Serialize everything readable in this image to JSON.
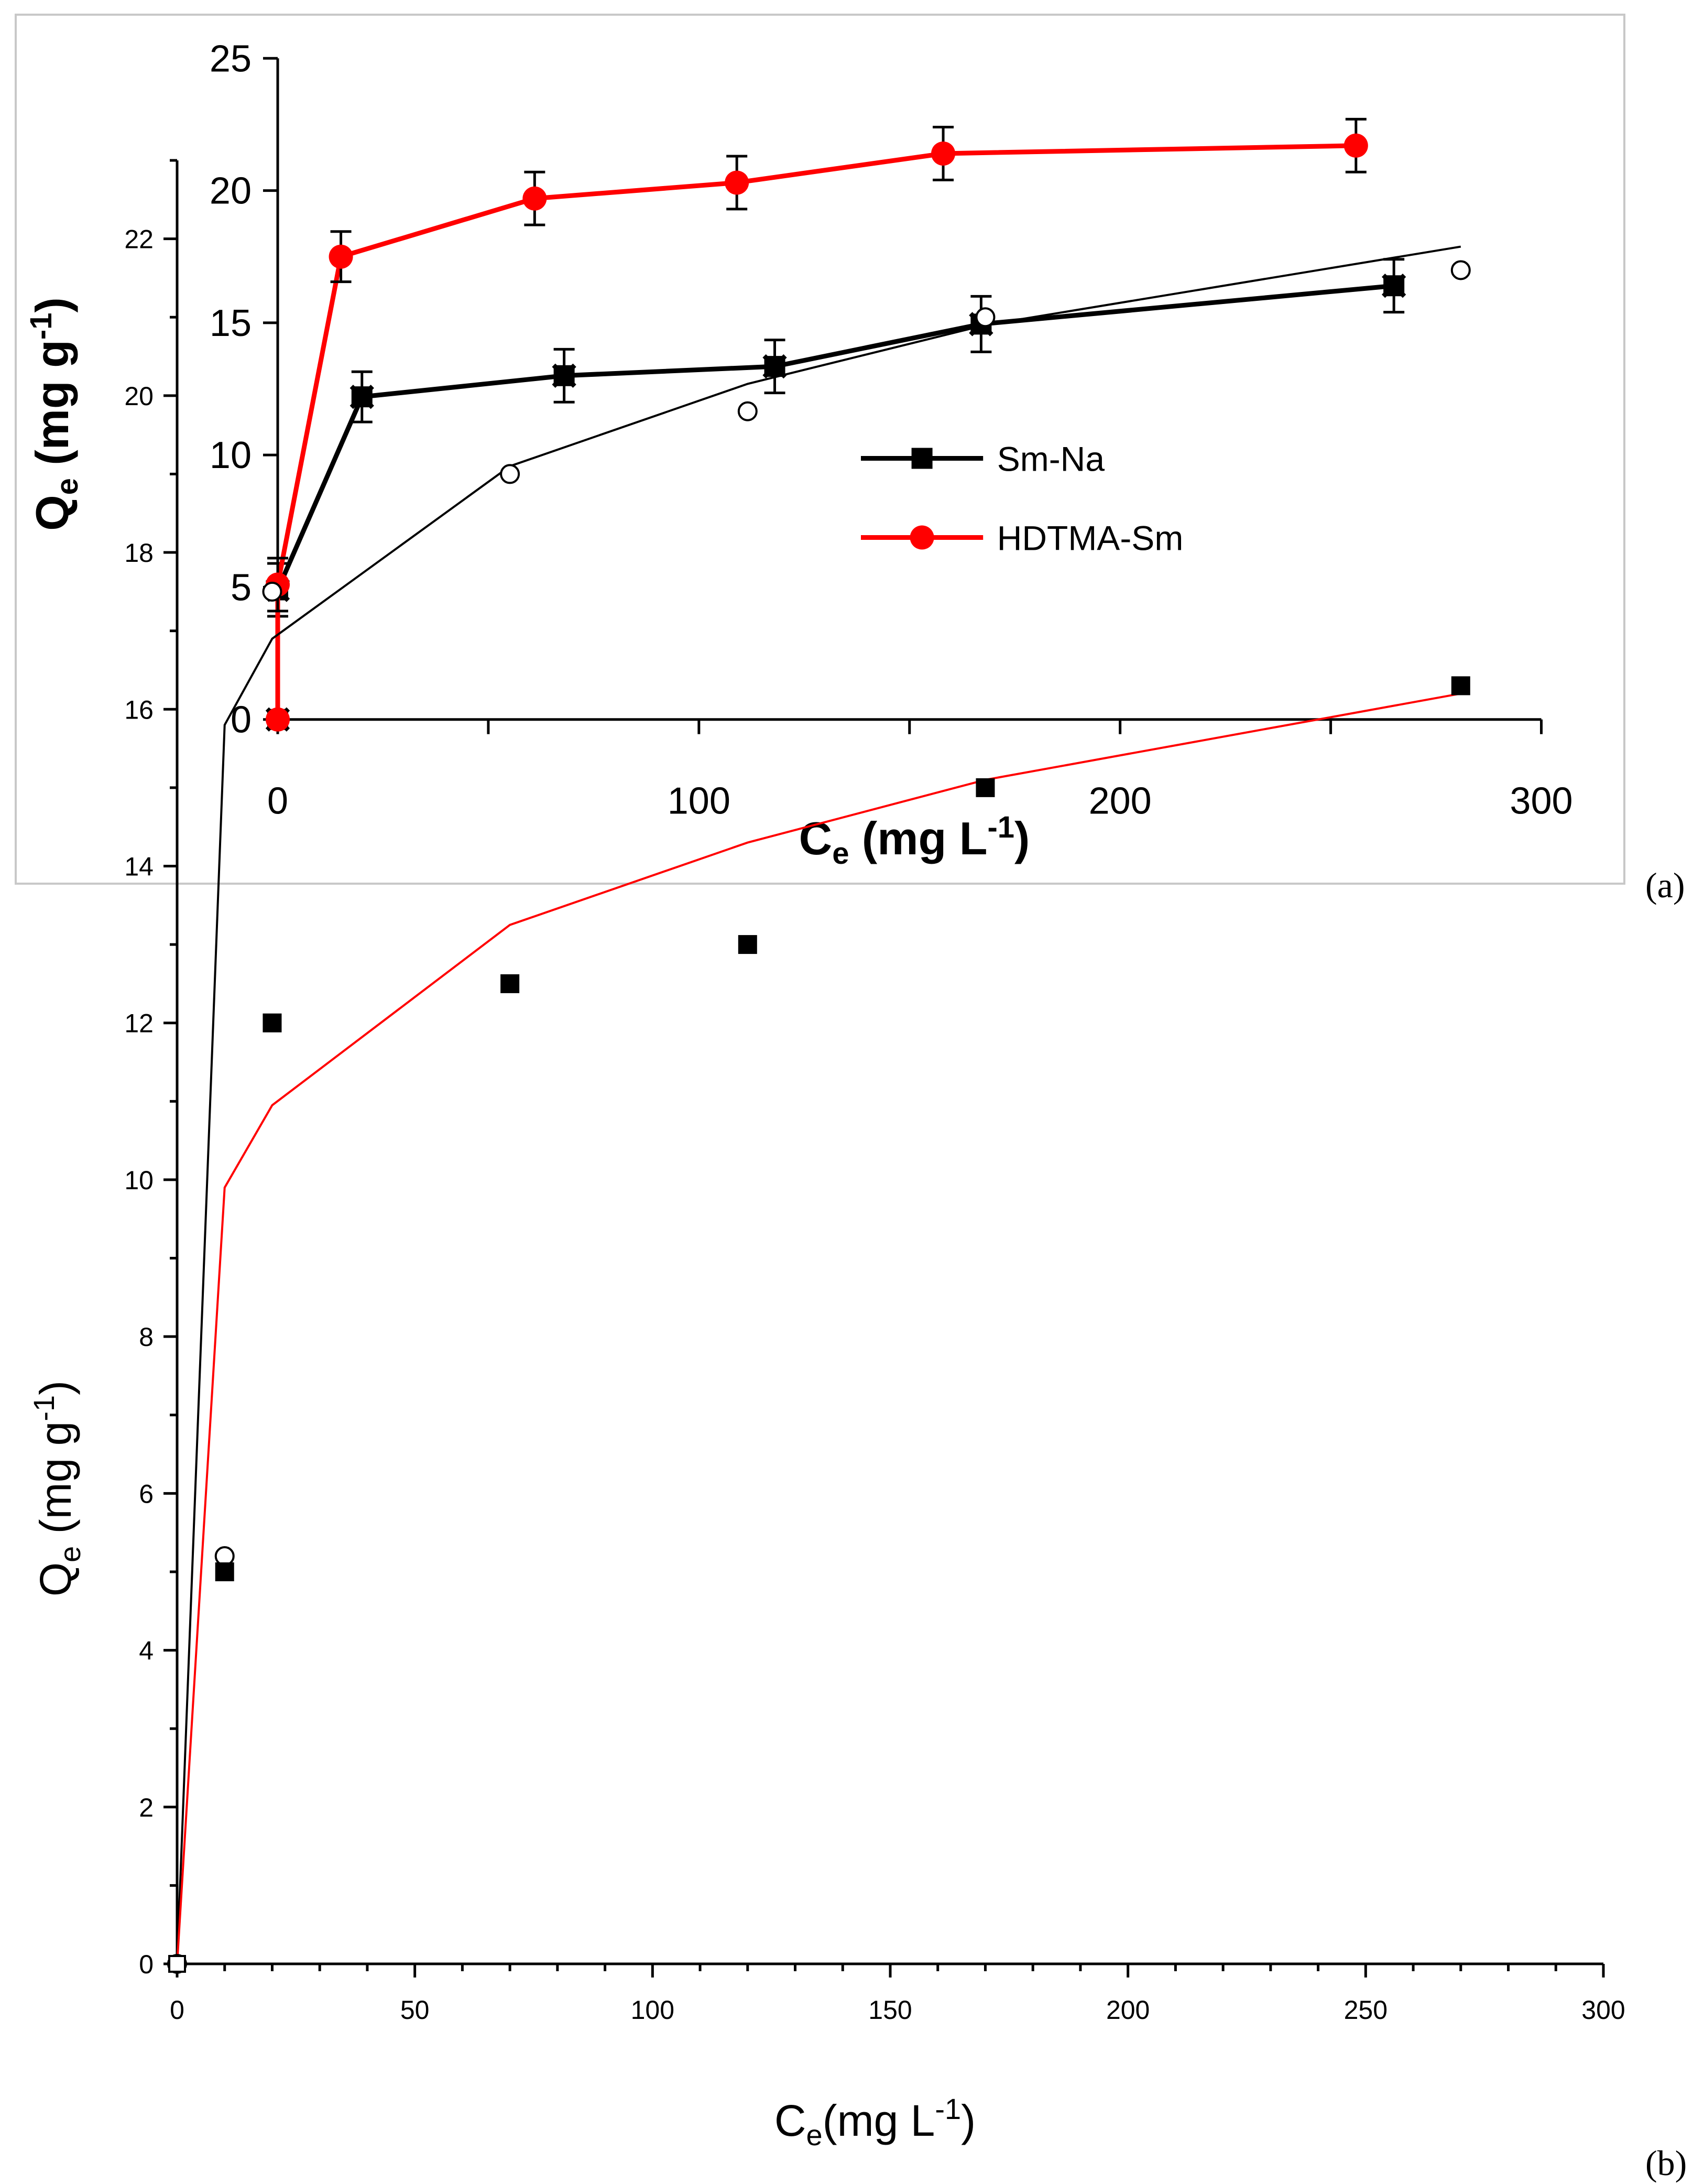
{
  "panels": {
    "a": {
      "label": "(a)"
    },
    "b": {
      "label": "(b)"
    }
  },
  "chart_data": [
    {
      "id": "a",
      "type": "line",
      "title": "",
      "xlabel": {
        "main": "C",
        "sub": "e",
        "rest": " (mg L",
        "sup": "-1",
        "end": ")"
      },
      "ylabel": {
        "main": "Q",
        "sub": "e",
        "rest": " (mg g",
        "sup": "-1",
        "end": ")"
      },
      "xlim": [
        0,
        300
      ],
      "ylim": [
        0,
        25
      ],
      "xticks": [
        0,
        100,
        200,
        300
      ],
      "xminor": [
        50,
        150,
        250
      ],
      "yticks": [
        0,
        5,
        10,
        15,
        20,
        25
      ],
      "grid": false,
      "legend_position": "center-right",
      "series": [
        {
          "name": "Sm-Na",
          "color": "#000000",
          "marker": "square-x",
          "x": [
            0,
            0,
            20,
            68,
            118,
            167,
            265
          ],
          "y": [
            0,
            4.9,
            12.2,
            13.0,
            13.35,
            14.95,
            16.4
          ],
          "err": [
            0,
            1.0,
            0.95,
            1.0,
            1.0,
            1.05,
            1.0
          ]
        },
        {
          "name": "HDTMA-Sm",
          "color": "#ff0000",
          "marker": "circle",
          "x": [
            0,
            0,
            15,
            61,
            109,
            158,
            256
          ],
          "y": [
            0,
            5.1,
            17.5,
            19.7,
            20.3,
            21.4,
            21.7
          ],
          "err": [
            0,
            1.0,
            0.95,
            1.0,
            1.0,
            1.0,
            1.0
          ]
        }
      ]
    },
    {
      "id": "b",
      "type": "scatter",
      "title": "",
      "xlabel": {
        "main": "C",
        "sub": "e",
        "rest": "(mg L",
        "sup": "-1",
        "end": ")"
      },
      "ylabel": {
        "main": "Q",
        "sub": "e",
        "rest": " (mg g",
        "sup": "-1",
        "end": ")"
      },
      "xlim": [
        0,
        300
      ],
      "ylim": [
        0,
        23
      ],
      "xticks": [
        0,
        50,
        100,
        150,
        200,
        250,
        300
      ],
      "yticks": [
        0,
        2,
        4,
        6,
        8,
        10,
        12,
        14,
        16,
        18,
        20,
        22
      ],
      "grid": false,
      "series": [
        {
          "marker": "open-circle",
          "color": "#000000",
          "x": [
            0,
            10,
            20,
            70,
            120,
            170,
            270
          ],
          "y": [
            0,
            5.2,
            17.5,
            19.0,
            19.8,
            21.0,
            21.6
          ]
        },
        {
          "marker": "filled-square",
          "color": "#000000",
          "x": [
            0,
            10,
            20,
            70,
            120,
            170,
            270
          ],
          "y": [
            0,
            5.0,
            12.0,
            12.5,
            13.0,
            15.0,
            16.3
          ]
        }
      ],
      "fits": [
        {
          "color": "#000000",
          "x": [
            0,
            10,
            20,
            70,
            120,
            170,
            270
          ],
          "y": [
            0,
            15.8,
            16.9,
            19.1,
            20.15,
            20.9,
            21.9
          ]
        },
        {
          "color": "#ff0000",
          "x": [
            0,
            10,
            20,
            70,
            120,
            170,
            270
          ],
          "y": [
            0,
            9.9,
            10.95,
            13.25,
            14.3,
            15.1,
            16.2
          ]
        }
      ]
    }
  ]
}
